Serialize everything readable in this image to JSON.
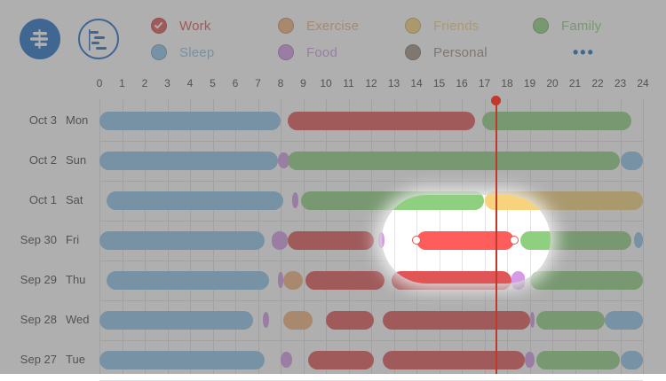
{
  "toolbar": {
    "menu_icon": "list-menu-icon",
    "timeline_icon": "timeline-icon"
  },
  "legend": [
    {
      "key": "work",
      "label": "Work",
      "color": "#e05555",
      "checked": true
    },
    {
      "key": "exercise",
      "label": "Exercise",
      "color": "#f2b27a"
    },
    {
      "key": "friends",
      "label": "Friends",
      "color": "#f6d37c"
    },
    {
      "key": "family",
      "label": "Family",
      "color": "#8fd080"
    },
    {
      "key": "sleep",
      "label": "Sleep",
      "color": "#8cc4e8"
    },
    {
      "key": "food",
      "label": "Food",
      "color": "#d59be6"
    },
    {
      "key": "personal",
      "label": "Personal",
      "color": "#9e8e80"
    },
    {
      "key": "more",
      "label": "•••",
      "color": "#1e6fc4"
    }
  ],
  "hours": [
    "0",
    "1",
    "2",
    "3",
    "4",
    "5",
    "6",
    "7",
    "8",
    "9",
    "10",
    "11",
    "12",
    "13",
    "14",
    "15",
    "16",
    "17",
    "18",
    "19",
    "20",
    "21",
    "22",
    "23",
    "24"
  ],
  "current_time_hour": 17.5,
  "days": [
    {
      "date": "Oct 3",
      "day": "Mon",
      "segments": [
        {
          "cat": "sleep",
          "start": 0,
          "end": 8
        },
        {
          "cat": "work",
          "start": 8.3,
          "end": 16.6
        },
        {
          "cat": "family",
          "start": 16.9,
          "end": 23.5
        }
      ]
    },
    {
      "date": "Oct 2",
      "day": "Sun",
      "segments": [
        {
          "cat": "sleep",
          "start": 0,
          "end": 7.9
        },
        {
          "cat": "food",
          "start": 7.9,
          "end": 8.4
        },
        {
          "cat": "family",
          "start": 8.3,
          "end": 23
        },
        {
          "cat": "sleep",
          "start": 23,
          "end": 24
        }
      ]
    },
    {
      "date": "Oct 1",
      "day": "Sat",
      "segments": [
        {
          "cat": "sleep",
          "start": 0.3,
          "end": 8.1
        },
        {
          "cat": "food",
          "start": 8.5,
          "end": 8.8
        },
        {
          "cat": "family",
          "start": 8.9,
          "end": 17
        },
        {
          "cat": "friends",
          "start": 17,
          "end": 24
        }
      ]
    },
    {
      "date": "Sep 30",
      "day": "Fri",
      "segments": [
        {
          "cat": "sleep",
          "start": 0,
          "end": 7.3
        },
        {
          "cat": "food",
          "start": 7.6,
          "end": 8.3
        },
        {
          "cat": "work",
          "start": 8.3,
          "end": 12.1
        },
        {
          "cat": "food",
          "start": 12.3,
          "end": 12.6
        },
        {
          "cat": "work",
          "start": 14,
          "end": 18.3,
          "selected": true
        },
        {
          "cat": "family",
          "start": 18.6,
          "end": 23.5
        },
        {
          "cat": "sleep",
          "start": 23.6,
          "end": 24
        }
      ]
    },
    {
      "date": "Sep 29",
      "day": "Thu",
      "segments": [
        {
          "cat": "sleep",
          "start": 0.3,
          "end": 7.5
        },
        {
          "cat": "food",
          "start": 7.9,
          "end": 8.1
        },
        {
          "cat": "exercise",
          "start": 8.1,
          "end": 9
        },
        {
          "cat": "work",
          "start": 9.1,
          "end": 12.6
        },
        {
          "cat": "work",
          "start": 12.9,
          "end": 18.2
        },
        {
          "cat": "food",
          "start": 18.2,
          "end": 18.8
        },
        {
          "cat": "family",
          "start": 19,
          "end": 24
        }
      ]
    },
    {
      "date": "Sep 28",
      "day": "Wed",
      "segments": [
        {
          "cat": "sleep",
          "start": 0,
          "end": 6.8
        },
        {
          "cat": "food",
          "start": 7.2,
          "end": 7.5
        },
        {
          "cat": "exercise",
          "start": 8.1,
          "end": 9.4
        },
        {
          "cat": "work",
          "start": 10,
          "end": 12.1
        },
        {
          "cat": "work",
          "start": 12.5,
          "end": 19
        },
        {
          "cat": "food",
          "start": 19,
          "end": 19.2
        },
        {
          "cat": "family",
          "start": 19.3,
          "end": 22.3
        },
        {
          "cat": "sleep",
          "start": 22.3,
          "end": 24
        }
      ]
    },
    {
      "date": "Sep 27",
      "day": "Tue",
      "segments": [
        {
          "cat": "sleep",
          "start": 0,
          "end": 7.3
        },
        {
          "cat": "food",
          "start": 8,
          "end": 8.5
        },
        {
          "cat": "work",
          "start": 9.2,
          "end": 12.1
        },
        {
          "cat": "work",
          "start": 12.5,
          "end": 18.8
        },
        {
          "cat": "food",
          "start": 18.8,
          "end": 19.2
        },
        {
          "cat": "family",
          "start": 19.3,
          "end": 23
        },
        {
          "cat": "sleep",
          "start": 23,
          "end": 24
        }
      ]
    }
  ]
}
